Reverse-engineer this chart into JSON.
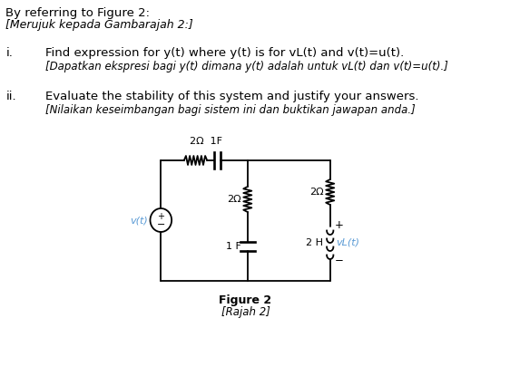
{
  "bg_color": "#ffffff",
  "title_line1": "By referring to Figure 2:",
  "title_line2": "[Merujuk kepada Gambarajah 2:]",
  "item_i_label": "i.",
  "item_i_bold": "Find expression for y(t) where y(t) is for vL(t) and v(t)=u(t).",
  "item_i_italic": "[Dapatkan ekspresi bagi y(t) dimana y(t) adalah untuk vL(t) dan v(t)=u(t).]",
  "item_ii_label": "ii.",
  "item_ii_bold": "Evaluate the stability of this system and justify your answers.",
  "item_ii_italic": "[Nilaikan keseimbangan bagi sistem ini dan buktikan jawapan anda.]",
  "fig_label": "Figure 2",
  "fig_label_italic": "[Rajah 2]",
  "circuit_color": "#000000",
  "label_color": "#5b9bd5",
  "text_color": "#000000",
  "label_2ohm_top": "2Ω  1F",
  "label_2ohm_mid": "2Ω",
  "label_2ohm_right": "2Ω",
  "label_1F": "1 F",
  "label_2H": "2 H",
  "label_vt": "v(t)",
  "label_vLt": "vL(t)",
  "label_plus": "+",
  "label_minus": "−"
}
